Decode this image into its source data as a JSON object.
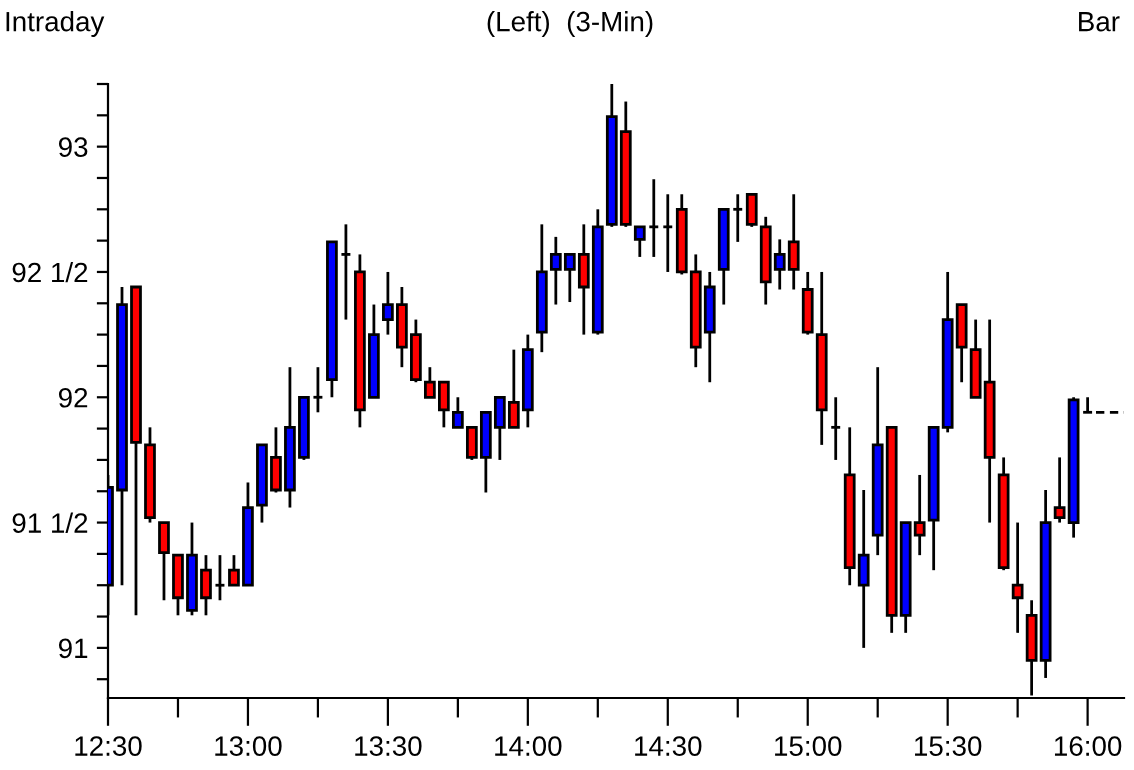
{
  "chart_data": {
    "type": "candlestick",
    "title": "(Left)  (3-Min)",
    "annotations": [
      "Intraday",
      "Bar"
    ],
    "x": [
      12.5,
      12.55,
      12.6,
      12.65,
      12.7,
      12.75,
      12.8,
      12.85,
      12.9,
      12.95,
      13.0,
      13.05,
      13.1,
      13.15,
      13.2,
      13.25,
      13.3,
      13.35,
      13.4,
      13.45,
      13.5,
      13.55,
      13.6,
      13.65,
      13.7,
      13.75,
      13.8,
      13.85,
      13.9,
      13.95,
      14.0,
      14.05,
      14.1,
      14.15,
      14.2,
      14.25,
      14.3,
      14.35,
      14.4,
      14.45,
      14.5,
      14.55,
      14.6,
      14.65,
      14.7,
      14.75,
      14.8,
      14.85,
      14.9,
      14.95,
      15.0,
      15.05,
      15.1,
      15.15,
      15.2,
      15.25,
      15.3,
      15.35,
      15.4,
      15.45,
      15.5,
      15.55,
      15.6,
      15.65,
      15.7,
      15.75,
      15.8,
      15.85,
      15.9,
      15.95,
      16.0
    ],
    "ohlc": [
      [
        91.25,
        91.69,
        91.13,
        91.64
      ],
      [
        91.63,
        92.44,
        91.25,
        92.37
      ],
      [
        92.44,
        92.44,
        91.13,
        91.82
      ],
      [
        91.81,
        91.88,
        91.5,
        91.52
      ],
      [
        91.5,
        91.5,
        91.19,
        91.38
      ],
      [
        91.37,
        91.37,
        91.13,
        91.2
      ],
      [
        91.15,
        91.5,
        91.13,
        91.37
      ],
      [
        91.31,
        91.37,
        91.13,
        91.2
      ],
      [
        91.25,
        91.37,
        91.19,
        91.25
      ],
      [
        91.31,
        91.37,
        91.25,
        91.25
      ],
      [
        91.25,
        91.66,
        91.25,
        91.56
      ],
      [
        91.57,
        91.81,
        91.5,
        91.81
      ],
      [
        91.76,
        91.88,
        91.62,
        91.63
      ],
      [
        91.63,
        92.12,
        91.56,
        91.88
      ],
      [
        91.76,
        92.0,
        91.75,
        92.0
      ],
      [
        92.0,
        92.12,
        91.94,
        92.0
      ],
      [
        92.07,
        92.62,
        92.0,
        92.62
      ],
      [
        92.57,
        92.69,
        92.31,
        92.57
      ],
      [
        92.5,
        92.57,
        91.88,
        91.95
      ],
      [
        92.0,
        92.37,
        92.0,
        92.25
      ],
      [
        92.31,
        92.5,
        92.25,
        92.37
      ],
      [
        92.37,
        92.44,
        92.12,
        92.2
      ],
      [
        92.25,
        92.31,
        92.06,
        92.07
      ],
      [
        92.06,
        92.12,
        92.0,
        92.0
      ],
      [
        92.06,
        92.06,
        91.88,
        91.95
      ],
      [
        91.88,
        92.0,
        91.88,
        91.94
      ],
      [
        91.88,
        91.88,
        91.75,
        91.76
      ],
      [
        91.76,
        91.94,
        91.62,
        91.94
      ],
      [
        91.88,
        92.0,
        91.75,
        92.0
      ],
      [
        91.98,
        92.19,
        91.88,
        91.88
      ],
      [
        91.95,
        92.25,
        91.88,
        92.19
      ],
      [
        92.26,
        92.69,
        92.18,
        92.5
      ],
      [
        92.51,
        92.64,
        92.37,
        92.57
      ],
      [
        92.51,
        92.57,
        92.38,
        92.57
      ],
      [
        92.57,
        92.69,
        92.25,
        92.44
      ],
      [
        92.26,
        92.75,
        92.25,
        92.68
      ],
      [
        92.69,
        93.25,
        92.68,
        93.12
      ],
      [
        93.06,
        93.18,
        92.68,
        92.69
      ],
      [
        92.63,
        92.68,
        92.56,
        92.68
      ],
      [
        92.68,
        92.87,
        92.56,
        92.68
      ],
      [
        92.68,
        92.81,
        92.5,
        92.68
      ],
      [
        92.75,
        92.81,
        92.49,
        92.5
      ],
      [
        92.5,
        92.57,
        92.12,
        92.2
      ],
      [
        92.26,
        92.5,
        92.06,
        92.44
      ],
      [
        92.51,
        92.75,
        92.37,
        92.75
      ],
      [
        92.75,
        92.81,
        92.62,
        92.75
      ],
      [
        92.81,
        92.81,
        92.68,
        92.69
      ],
      [
        92.68,
        92.72,
        92.37,
        92.46
      ],
      [
        92.51,
        92.63,
        92.43,
        92.57
      ],
      [
        92.62,
        92.81,
        92.43,
        92.51
      ],
      [
        92.43,
        92.5,
        92.25,
        92.26
      ],
      [
        92.25,
        92.5,
        91.81,
        91.95
      ],
      [
        91.88,
        92.0,
        91.75,
        91.88
      ],
      [
        91.69,
        91.88,
        91.25,
        91.32
      ],
      [
        91.25,
        91.63,
        91.0,
        91.37
      ],
      [
        91.45,
        92.12,
        91.37,
        91.81
      ],
      [
        91.88,
        91.88,
        91.06,
        91.13
      ],
      [
        91.13,
        91.5,
        91.06,
        91.5
      ],
      [
        91.5,
        91.69,
        91.37,
        91.45
      ],
      [
        91.51,
        91.88,
        91.31,
        91.88
      ],
      [
        91.88,
        92.5,
        91.86,
        92.31
      ],
      [
        92.37,
        92.37,
        92.06,
        92.2
      ],
      [
        92.19,
        92.31,
        92.0,
        92.0
      ],
      [
        92.06,
        92.31,
        91.5,
        91.76
      ],
      [
        91.69,
        91.76,
        91.31,
        91.32
      ],
      [
        91.25,
        91.5,
        91.06,
        91.2
      ],
      [
        91.13,
        91.19,
        90.81,
        90.95
      ],
      [
        90.95,
        91.63,
        90.88,
        91.5
      ],
      [
        91.56,
        91.76,
        91.5,
        91.52
      ],
      [
        91.5,
        92.0,
        91.44,
        91.99
      ],
      [
        91.94,
        92.0,
        91.94,
        91.94
      ]
    ],
    "colors": [
      "#0000ff",
      "#0000ff",
      "#ff0000",
      "#ff0000",
      "#ff0000",
      "#ff0000",
      "#0000ff",
      "#ff0000",
      "#000000",
      "#ff0000",
      "#0000ff",
      "#0000ff",
      "#ff0000",
      "#0000ff",
      "#0000ff",
      "#000000",
      "#0000ff",
      "#000000",
      "#ff0000",
      "#0000ff",
      "#0000ff",
      "#ff0000",
      "#ff0000",
      "#ff0000",
      "#ff0000",
      "#0000ff",
      "#ff0000",
      "#0000ff",
      "#0000ff",
      "#ff0000",
      "#0000ff",
      "#0000ff",
      "#0000ff",
      "#0000ff",
      "#ff0000",
      "#0000ff",
      "#0000ff",
      "#ff0000",
      "#0000ff",
      "#000000",
      "#000000",
      "#ff0000",
      "#ff0000",
      "#0000ff",
      "#0000ff",
      "#000000",
      "#ff0000",
      "#ff0000",
      "#0000ff",
      "#ff0000",
      "#ff0000",
      "#ff0000",
      "#000000",
      "#ff0000",
      "#0000ff",
      "#0000ff",
      "#ff0000",
      "#0000ff",
      "#ff0000",
      "#0000ff",
      "#0000ff",
      "#ff0000",
      "#ff0000",
      "#ff0000",
      "#ff0000",
      "#ff0000",
      "#ff0000",
      "#0000ff",
      "#ff0000",
      "#0000ff",
      "#000000"
    ],
    "series": [
      {
        "type": "line",
        "x": [
          16.03,
          16.13
        ],
        "values": [
          91.94,
          91.94
        ],
        "color": "#000000",
        "line_style": "dashed"
      }
    ],
    "xlim": [
      12.5,
      16.13
    ],
    "xticks": [
      {
        "value": 12.5,
        "label": "12:30"
      },
      {
        "value": 12.75,
        "label": null
      },
      {
        "value": 13.0,
        "label": "13:00"
      },
      {
        "value": 13.25,
        "label": null
      },
      {
        "value": 13.5,
        "label": "13:30"
      },
      {
        "value": 13.75,
        "label": null
      },
      {
        "value": 14.0,
        "label": "14:00"
      },
      {
        "value": 14.25,
        "label": null
      },
      {
        "value": 14.5,
        "label": "14:30"
      },
      {
        "value": 14.75,
        "label": null
      },
      {
        "value": 15.0,
        "label": "15:00"
      },
      {
        "value": 15.25,
        "label": null
      },
      {
        "value": 15.5,
        "label": "15:30"
      },
      {
        "value": 15.75,
        "label": null
      },
      {
        "value": 16.0,
        "label": "16:00"
      }
    ],
    "ylim": [
      90.8,
      93.25
    ],
    "yticks": [
      {
        "value": 90.875,
        "label": null
      },
      91,
      {
        "value": 91.125,
        "label": null
      },
      {
        "value": 91.25,
        "label": null
      },
      {
        "value": 91.375,
        "label": null
      },
      {
        "value": 91.5,
        "label": "91 1/2"
      },
      {
        "value": 91.625,
        "label": null
      },
      {
        "value": 91.75,
        "label": null
      },
      {
        "value": 91.875,
        "label": null
      },
      92,
      {
        "value": 92.125,
        "label": null
      },
      {
        "value": 92.25,
        "label": null
      },
      {
        "value": 92.375,
        "label": null
      },
      {
        "value": 92.5,
        "label": "92 1/2"
      },
      {
        "value": 92.625,
        "label": null
      },
      {
        "value": 92.75,
        "label": null
      },
      {
        "value": 92.875,
        "label": null
      },
      93,
      {
        "value": 93.125,
        "label": null
      },
      {
        "value": 93.25,
        "label": null
      }
    ],
    "grid": false
  }
}
